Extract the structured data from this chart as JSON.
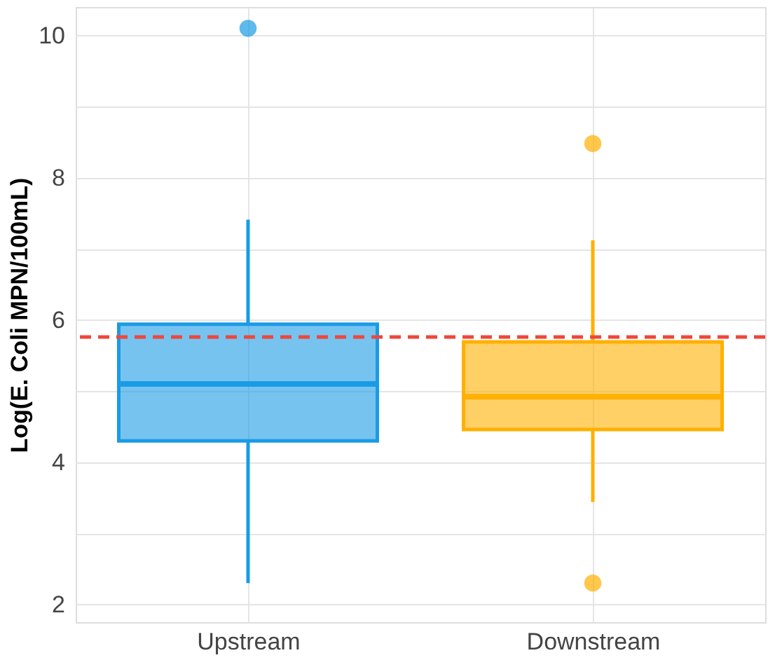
{
  "chart_data": {
    "type": "box",
    "ylabel": "Log(E. Coli MPN/100mL)",
    "categories": [
      "Upstream",
      "Downstream"
    ],
    "series": [
      {
        "color": "#1a9be6",
        "boxes": [
          {
            "low": 2.3,
            "q1": 4.3,
            "median": 5.1,
            "q3": 5.94,
            "high": 7.41,
            "outliers": [
              10.1
            ]
          },
          null
        ]
      },
      {
        "color": "#ffb000",
        "boxes": [
          null,
          {
            "low": 3.44,
            "q1": 4.46,
            "median": 4.92,
            "q3": 5.69,
            "high": 7.12,
            "outliers": [
              8.48,
              2.3
            ]
          }
        ]
      }
    ],
    "ylim": [
      1.75,
      10.4
    ],
    "yticks": [
      2,
      {
        "value": 3,
        "label": null
      },
      4,
      {
        "value": 5,
        "label": null
      },
      6,
      {
        "value": 7,
        "label": null
      },
      8,
      {
        "value": 9,
        "label": null
      },
      10
    ],
    "ref_lines": [
      {
        "axis": "y",
        "value": 5.76,
        "color": "#f0463a",
        "line_style": "dashed"
      }
    ],
    "grid": true,
    "legend": false
  }
}
